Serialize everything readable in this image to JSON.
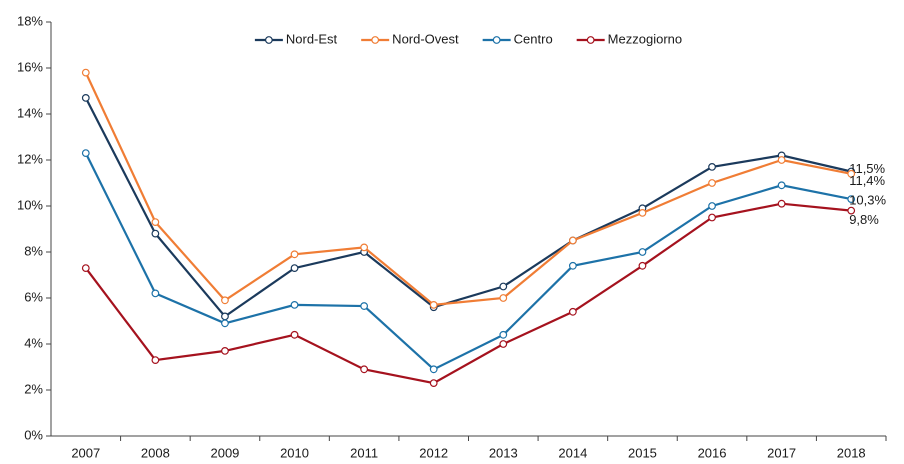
{
  "chart_data": {
    "type": "line",
    "categories": [
      "2007",
      "2008",
      "2009",
      "2010",
      "2011",
      "2012",
      "2013",
      "2014",
      "2015",
      "2016",
      "2017",
      "2018"
    ],
    "series": [
      {
        "name": "Nord-Est",
        "color": "#1b3a5c",
        "values": [
          14.7,
          8.8,
          5.2,
          7.3,
          8.0,
          5.6,
          6.5,
          8.5,
          9.9,
          11.7,
          12.2,
          11.5
        ],
        "value_labels": [
          null,
          null,
          null,
          null,
          null,
          null,
          null,
          null,
          null,
          null,
          null,
          "11,5%"
        ]
      },
      {
        "name": "Nord-Ovest",
        "color": "#f07d35",
        "values": [
          15.8,
          9.3,
          5.9,
          7.9,
          8.2,
          5.7,
          6.0,
          8.5,
          9.7,
          11.0,
          12.0,
          11.4
        ],
        "value_labels": [
          null,
          null,
          null,
          null,
          null,
          null,
          null,
          null,
          null,
          null,
          null,
          "11,4%"
        ]
      },
      {
        "name": "Centro",
        "color": "#1d72a8",
        "values": [
          12.3,
          6.2,
          4.9,
          5.7,
          5.65,
          2.9,
          4.4,
          7.4,
          8.0,
          10.0,
          10.9,
          10.3
        ],
        "value_labels": [
          null,
          null,
          null,
          null,
          null,
          null,
          null,
          null,
          null,
          null,
          null,
          "10,3%"
        ]
      },
      {
        "name": "Mezzogiorno",
        "color": "#a5121e",
        "values": [
          7.3,
          3.3,
          3.7,
          4.4,
          2.9,
          2.3,
          4.0,
          5.4,
          7.4,
          9.5,
          10.1,
          9.8
        ],
        "value_labels": [
          null,
          null,
          null,
          null,
          null,
          null,
          null,
          null,
          null,
          null,
          null,
          "9,8%"
        ]
      }
    ],
    "ylim": [
      0,
      18
    ],
    "yticks": [
      {
        "value": 0,
        "label": "0%"
      },
      {
        "value": 2,
        "label": "2%"
      },
      {
        "value": 4,
        "label": "4%"
      },
      {
        "value": 6,
        "label": "6%"
      },
      {
        "value": 8,
        "label": "8%"
      },
      {
        "value": 10,
        "label": "10%"
      },
      {
        "value": 12,
        "label": "12%"
      },
      {
        "value": 14,
        "label": "14%"
      },
      {
        "value": 16,
        "label": "16%"
      },
      {
        "value": 18,
        "label": "18%"
      }
    ],
    "grid": false,
    "legend": "top"
  }
}
